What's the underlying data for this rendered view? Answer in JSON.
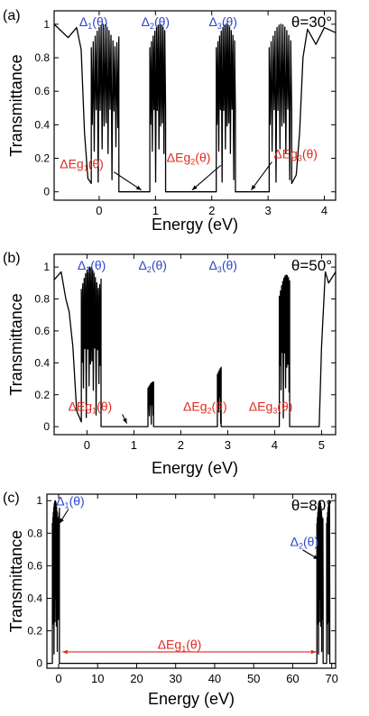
{
  "chart_data": [
    {
      "type": "line",
      "panel_label": "(a)",
      "angle_label": "θ=30°",
      "xlabel": "Energy (eV)",
      "ylabel": "Transmittance",
      "xlim": [
        -0.8,
        4.2
      ],
      "ylim": [
        -0.05,
        1.08
      ],
      "xticks": [
        0,
        1,
        2,
        3,
        4
      ],
      "yticks": [
        0,
        0.2,
        0.4,
        0.6,
        0.8,
        1
      ],
      "xtick_labels": [
        "0",
        "1",
        "2",
        "3",
        "4"
      ],
      "ytick_labels": [
        "0",
        "0.2",
        "0.4",
        "0.6",
        "0.8",
        "1"
      ],
      "segments": [
        {
          "kind": "smooth",
          "x": [
            -0.8,
            -0.55,
            -0.4,
            -0.32,
            -0.26,
            -0.2,
            -0.14
          ],
          "y": [
            1.0,
            0.92,
            0.98,
            0.85,
            0.35,
            0.08,
            0.05
          ]
        },
        {
          "kind": "osc",
          "x0": -0.14,
          "x1": 0.35,
          "env": 1.0,
          "period": 0.035
        },
        {
          "kind": "smooth",
          "x": [
            0.35,
            0.9
          ],
          "y": [
            0.0,
            0.0
          ]
        },
        {
          "kind": "osc",
          "x0": 0.9,
          "x1": 1.18,
          "env": 1.0,
          "period": 0.03
        },
        {
          "kind": "smooth",
          "x": [
            1.18,
            2.08
          ],
          "y": [
            0.0,
            0.0
          ]
        },
        {
          "kind": "osc",
          "x0": 2.08,
          "x1": 2.42,
          "env": 1.0,
          "period": 0.03
        },
        {
          "kind": "smooth",
          "x": [
            2.42,
            3.02
          ],
          "y": [
            0.0,
            0.0
          ]
        },
        {
          "kind": "osc",
          "x0": 3.02,
          "x1": 3.42,
          "env": 1.0,
          "period": 0.035
        },
        {
          "kind": "smooth",
          "x": [
            3.42,
            3.5,
            3.56,
            3.62,
            3.7,
            3.85,
            4.0,
            4.2
          ],
          "y": [
            0.05,
            0.1,
            0.35,
            0.8,
            0.97,
            0.88,
            0.98,
            0.95
          ]
        }
      ],
      "gap_labels": [
        {
          "text": "ΔEg",
          "sub": "1",
          "arg": "(θ)",
          "x": -0.7,
          "y": 0.14,
          "ax": 0.75,
          "ay": 0.01
        },
        {
          "text": "ΔEg",
          "sub": "2",
          "arg": "(θ)",
          "x": 1.2,
          "y": 0.18,
          "ax": 1.65,
          "ay": 0.01
        },
        {
          "text": "ΔEg",
          "sub": "3",
          "arg": "(θ)",
          "x": 3.1,
          "y": 0.2,
          "ax": 2.7,
          "ay": 0.01
        }
      ],
      "band_labels": [
        {
          "text": "Δ",
          "sub": "1",
          "arg": "(θ)",
          "x": -0.1
        },
        {
          "text": "Δ",
          "sub": "2",
          "arg": "(θ)",
          "x": 1.0
        },
        {
          "text": "Δ",
          "sub": "3",
          "arg": "(θ)",
          "x": 2.2
        }
      ]
    },
    {
      "type": "line",
      "panel_label": "(b)",
      "angle_label": "θ=50°",
      "xlabel": "Energy (eV)",
      "ylabel": "Transmittance",
      "xlim": [
        -0.7,
        5.3
      ],
      "ylim": [
        -0.05,
        1.08
      ],
      "xticks": [
        0,
        1,
        2,
        3,
        4,
        5
      ],
      "yticks": [
        0,
        0.2,
        0.4,
        0.6,
        0.8,
        1
      ],
      "xtick_labels": [
        "0",
        "1",
        "2",
        "3",
        "4",
        "5"
      ],
      "ytick_labels": [
        "0",
        "0.2",
        "0.4",
        "0.6",
        "0.8",
        "1"
      ],
      "segments": [
        {
          "kind": "smooth",
          "x": [
            -0.7,
            -0.55,
            -0.45,
            -0.38,
            -0.3,
            -0.22,
            -0.12
          ],
          "y": [
            0.92,
            0.97,
            0.8,
            0.72,
            0.5,
            0.1,
            0.03
          ]
        },
        {
          "kind": "osc",
          "x0": -0.12,
          "x1": 0.3,
          "env": 1.0,
          "period": 0.03
        },
        {
          "kind": "smooth",
          "x": [
            0.3,
            1.3
          ],
          "y": [
            0.0,
            0.0
          ]
        },
        {
          "kind": "osc",
          "x0": 1.3,
          "x1": 1.42,
          "env": 0.28,
          "period": 0.02
        },
        {
          "kind": "smooth",
          "x": [
            1.42,
            2.78
          ],
          "y": [
            0.0,
            0.0
          ]
        },
        {
          "kind": "osc",
          "x0": 2.78,
          "x1": 2.86,
          "env": 0.38,
          "period": 0.02
        },
        {
          "kind": "smooth",
          "x": [
            2.86,
            4.1
          ],
          "y": [
            0.0,
            0.0
          ]
        },
        {
          "kind": "osc",
          "x0": 4.1,
          "x1": 4.32,
          "env": 0.95,
          "period": 0.025
        },
        {
          "kind": "smooth",
          "x": [
            4.32,
            4.95
          ],
          "y": [
            0.0,
            0.0
          ]
        },
        {
          "kind": "smooth",
          "x": [
            4.95,
            5.0,
            5.08,
            5.15,
            5.3
          ],
          "y": [
            0.0,
            0.5,
            0.97,
            0.9,
            0.97
          ]
        }
      ],
      "gap_labels": [
        {
          "text": "ΔEg",
          "sub": "1",
          "arg": "(θ)",
          "x": -0.4,
          "y": 0.1,
          "ax": 0.85,
          "ay": 0.02
        },
        {
          "text": "ΔEg",
          "sub": "2",
          "arg": "(θ)",
          "x": 2.05,
          "y": 0.1,
          "ax": null,
          "ay": null
        },
        {
          "text": "ΔEg",
          "sub": "3",
          "arg": "(θ)",
          "x": 3.45,
          "y": 0.1,
          "ax": null,
          "ay": null
        }
      ],
      "band_labels": [
        {
          "text": "Δ",
          "sub": "1",
          "arg": "(θ)",
          "x": 0.1
        },
        {
          "text": "Δ",
          "sub": "2",
          "arg": "(θ)",
          "x": 1.4
        },
        {
          "text": "Δ",
          "sub": "3",
          "arg": "(θ)",
          "x": 2.9
        }
      ]
    },
    {
      "type": "line",
      "panel_label": "(c)",
      "angle_label": "θ=80°",
      "xlabel": "Energy (eV)",
      "ylabel": "Transmittance",
      "xlim": [
        -3,
        71
      ],
      "ylim": [
        -0.03,
        1.04
      ],
      "xticks": [
        0,
        10,
        20,
        30,
        40,
        50,
        60,
        70
      ],
      "yticks": [
        0,
        0.2,
        0.4,
        0.6,
        0.8,
        1
      ],
      "xtick_labels": [
        "0",
        "10",
        "20",
        "30",
        "40",
        "50",
        "60",
        "70"
      ],
      "ytick_labels": [
        "0",
        "0.2",
        "0.4",
        "0.6",
        "0.8",
        "1"
      ],
      "segments": [
        {
          "kind": "smooth",
          "x": [
            -3,
            -1.6
          ],
          "y": [
            0.0,
            0.0
          ]
        },
        {
          "kind": "osc",
          "x0": -1.6,
          "x1": 0.2,
          "env": 1.0,
          "period": 0.12
        },
        {
          "kind": "smooth",
          "x": [
            0.2,
            66.2
          ],
          "y": [
            0.0,
            0.0
          ]
        },
        {
          "kind": "osc",
          "x0": 66.2,
          "x1": 67.8,
          "env": 1.0,
          "period": 0.12
        },
        {
          "kind": "smooth",
          "x": [
            67.8,
            68.7
          ],
          "y": [
            0.0,
            0.0
          ]
        },
        {
          "kind": "osc",
          "x0": 68.7,
          "x1": 69.5,
          "env": 1.0,
          "period": 0.12
        },
        {
          "kind": "smooth",
          "x": [
            69.5,
            71
          ],
          "y": [
            0.0,
            0.0
          ]
        }
      ],
      "gap_labels": [
        {
          "text": "ΔEg",
          "sub": "1",
          "arg": "(θ)",
          "x": 31.0,
          "y": 0.09,
          "ax": null,
          "ay": null,
          "double_arrow": [
            1,
            66
          ]
        }
      ],
      "band_labels": [
        {
          "text": "Δ",
          "sub": "1",
          "arg": "(θ)",
          "x": 3.0,
          "y": 0.97,
          "ax": 0.2,
          "ay": 0.86
        },
        {
          "text": "Δ",
          "sub": "2",
          "arg": "(θ)",
          "x": 63.0,
          "y": 0.72,
          "ax": 66.6,
          "ay": 0.64
        }
      ]
    }
  ],
  "colors": {
    "blue": "#2a47c9",
    "red": "#e02a20",
    "line": "#000000"
  }
}
